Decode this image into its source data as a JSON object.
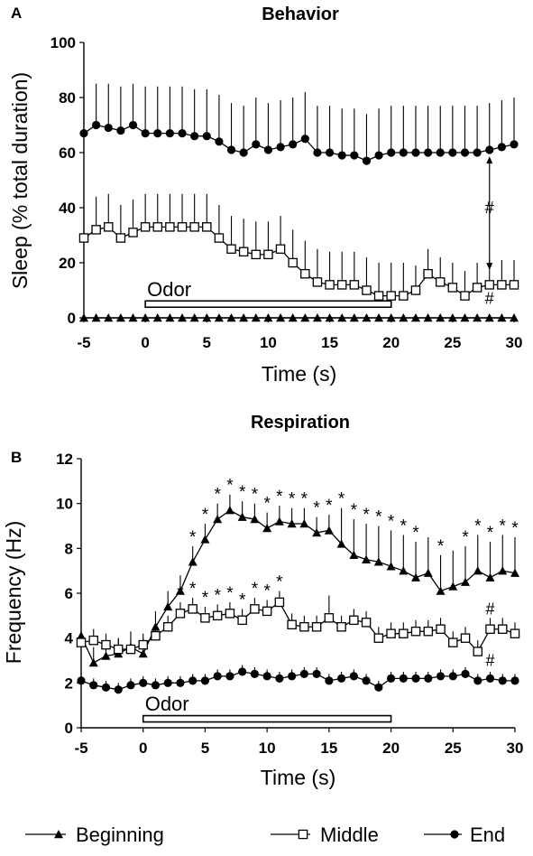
{
  "legend": [
    {
      "name": "Beginning",
      "marker": "triangle"
    },
    {
      "name": "Middle",
      "marker": "open-square"
    },
    {
      "name": "End",
      "marker": "circle"
    }
  ],
  "chart_data": [
    {
      "panel": "A",
      "type": "line",
      "title": "Behavior",
      "xlabel": "Time (s)",
      "ylabel": "Sleep (% total duration)",
      "xlim": [
        -5,
        30
      ],
      "ylim": [
        0,
        100
      ],
      "xticks": [
        -5,
        0,
        5,
        10,
        15,
        20,
        25,
        30
      ],
      "yticks": [
        0,
        20,
        40,
        60,
        80,
        100
      ],
      "grid": false,
      "x": [
        -5,
        -4,
        -3,
        -2,
        -1,
        0,
        1,
        2,
        3,
        4,
        5,
        6,
        7,
        8,
        9,
        10,
        11,
        12,
        13,
        14,
        15,
        16,
        17,
        18,
        19,
        20,
        21,
        22,
        23,
        24,
        25,
        26,
        27,
        28,
        29,
        30
      ],
      "series": [
        {
          "name": "Beginning",
          "marker": "triangle",
          "values": [
            0,
            0,
            0,
            0,
            0,
            0,
            0,
            0,
            0,
            0,
            0,
            0,
            0,
            0,
            0,
            0,
            0,
            0,
            0,
            0,
            0,
            0,
            0,
            0,
            0,
            0,
            0,
            0,
            0,
            0,
            0,
            0,
            0,
            0,
            0,
            0
          ]
        },
        {
          "name": "Middle",
          "marker": "open-square",
          "values": [
            29,
            32,
            33,
            29,
            31,
            33,
            33,
            33,
            33,
            33,
            33,
            29,
            25,
            24,
            23,
            23,
            25,
            20,
            16,
            13,
            12,
            12,
            12,
            10,
            8,
            8,
            8,
            10,
            16,
            13,
            11,
            8,
            11,
            12,
            12,
            12
          ],
          "error": [
            12,
            12,
            12,
            12,
            12,
            12,
            12,
            12,
            12,
            12,
            12,
            12,
            12,
            12,
            12,
            12,
            12,
            12,
            12,
            12,
            12,
            12,
            12,
            12,
            12,
            12,
            12,
            9,
            9,
            9,
            9,
            9,
            9,
            9,
            9,
            9
          ]
        },
        {
          "name": "End",
          "marker": "circle",
          "values": [
            67,
            70,
            69,
            68,
            70,
            67,
            67,
            67,
            67,
            66,
            66,
            64,
            61,
            60,
            63,
            61,
            62,
            63,
            65,
            60,
            60,
            59,
            59,
            57,
            59,
            60,
            60,
            60,
            60,
            60,
            60,
            60,
            60,
            61,
            62,
            63
          ],
          "error": [
            16,
            15,
            16,
            16,
            15,
            17,
            17,
            17,
            17,
            17,
            17,
            17,
            17,
            17,
            17,
            17,
            17,
            17,
            17,
            17,
            17,
            17,
            17,
            17,
            17,
            17,
            17,
            17,
            17,
            17,
            17,
            17,
            17,
            17,
            17,
            17
          ]
        }
      ],
      "annotations": [
        {
          "text": "Odor",
          "type": "odor-bar",
          "x_range": [
            0,
            20
          ],
          "at": 5
        },
        {
          "text": "#",
          "x": 28,
          "y": 40
        },
        {
          "text": "#",
          "x": 28,
          "y": 7
        }
      ]
    },
    {
      "panel": "B",
      "type": "line",
      "title": "Respiration",
      "xlabel": "Time (s)",
      "ylabel": "Frequency (Hz)",
      "xlim": [
        -5,
        30
      ],
      "ylim": [
        0,
        12
      ],
      "xticks": [
        -5,
        0,
        5,
        10,
        15,
        20,
        25,
        30
      ],
      "yticks": [
        0,
        2,
        4,
        6,
        8,
        10,
        12
      ],
      "grid": false,
      "x": [
        -5,
        -4,
        -3,
        -2,
        -1,
        0,
        1,
        2,
        3,
        4,
        5,
        6,
        7,
        8,
        9,
        10,
        11,
        12,
        13,
        14,
        15,
        16,
        17,
        18,
        19,
        20,
        21,
        22,
        23,
        24,
        25,
        26,
        27,
        28,
        29,
        30
      ],
      "series": [
        {
          "name": "Beginning",
          "marker": "triangle",
          "values": [
            4.1,
            2.9,
            3.2,
            3.3,
            3.6,
            3.3,
            4.5,
            5.4,
            6.1,
            7.4,
            8.4,
            9.3,
            9.7,
            9.4,
            9.3,
            8.9,
            9.2,
            9.1,
            9.1,
            8.7,
            8.8,
            8.2,
            7.7,
            7.5,
            7.4,
            7.2,
            7.0,
            6.7,
            6.9,
            6.1,
            6.3,
            6.5,
            7.0,
            6.7,
            7.0,
            6.9
          ],
          "error": [
            0.7,
            0.7,
            0.7,
            0.7,
            0.7,
            0.7,
            0.7,
            0.7,
            0.7,
            0.7,
            0.7,
            0.7,
            0.7,
            0.7,
            0.7,
            0.7,
            0.7,
            0.7,
            0.7,
            0.7,
            0.7,
            1.6,
            1.6,
            1.6,
            1.6,
            1.6,
            1.6,
            1.6,
            1.6,
            1.6,
            1.6,
            1.6,
            1.6,
            1.6,
            1.6,
            1.6
          ]
        },
        {
          "name": "Middle",
          "marker": "open-square",
          "values": [
            3.8,
            3.9,
            3.7,
            3.5,
            3.5,
            3.7,
            4.1,
            4.5,
            5.1,
            5.3,
            4.9,
            5.0,
            5.1,
            4.8,
            5.3,
            5.2,
            5.6,
            4.6,
            4.5,
            4.5,
            4.9,
            4.5,
            4.8,
            4.7,
            4.0,
            4.2,
            4.2,
            4.3,
            4.3,
            4.4,
            3.8,
            4.0,
            3.4,
            4.4,
            4.4,
            4.2
          ],
          "error": [
            0.5,
            0.5,
            0.5,
            0.5,
            0.5,
            0.5,
            0.5,
            0.5,
            0.5,
            0.5,
            0.5,
            0.5,
            0.5,
            0.5,
            0.5,
            0.5,
            0.5,
            0.5,
            0.5,
            0.5,
            1.0,
            0.5,
            0.5,
            0.5,
            0.5,
            0.5,
            0.5,
            0.5,
            0.5,
            0.5,
            0.5,
            0.5,
            0.5,
            0.5,
            0.5,
            0.5
          ]
        },
        {
          "name": "End",
          "marker": "circle",
          "values": [
            2.1,
            1.9,
            1.8,
            1.7,
            1.9,
            2.0,
            1.9,
            2.0,
            2.0,
            2.1,
            2.1,
            2.3,
            2.3,
            2.5,
            2.4,
            2.3,
            2.2,
            2.3,
            2.4,
            2.4,
            2.1,
            2.2,
            2.3,
            2.1,
            1.8,
            2.2,
            2.2,
            2.2,
            2.2,
            2.3,
            2.3,
            2.4,
            2.1,
            2.2,
            2.1,
            2.1
          ],
          "error": [
            0.3,
            0.3,
            0.3,
            0.3,
            0.3,
            0.3,
            0.3,
            0.3,
            0.3,
            0.3,
            0.3,
            0.3,
            0.3,
            0.3,
            0.3,
            0.3,
            0.3,
            0.3,
            0.3,
            0.3,
            0.3,
            0.3,
            0.3,
            0.3,
            0.3,
            0.3,
            0.3,
            0.3,
            0.3,
            0.3,
            0.3,
            0.3,
            0.3,
            0.3,
            0.3,
            0.3
          ]
        }
      ],
      "annotations": [
        {
          "text": "Odor",
          "type": "odor-bar",
          "x_range": [
            0,
            20
          ],
          "at": 0.4
        },
        {
          "text": "#",
          "x": 28,
          "y": 5.3
        },
        {
          "text": "#",
          "x": 28,
          "y": 3.0
        },
        {
          "text": "*",
          "type": "significance",
          "series": "Beginning",
          "x": [
            4,
            5,
            6,
            7,
            8,
            9,
            10,
            11,
            12,
            13,
            14,
            15,
            16,
            17,
            18,
            19,
            20,
            21,
            22,
            24,
            26,
            27,
            28,
            29,
            30
          ]
        },
        {
          "text": "*",
          "type": "significance",
          "series": "Middle",
          "x": [
            3,
            4,
            5,
            6,
            7,
            8,
            9,
            10,
            11
          ]
        }
      ]
    }
  ]
}
